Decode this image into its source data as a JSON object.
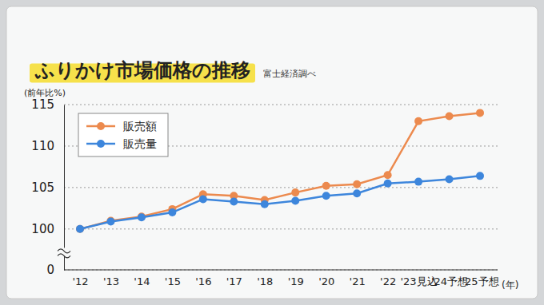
{
  "chart_data": {
    "type": "line",
    "title": "ふりかけ市場価格の推移",
    "subtitle": "富士経済調べ",
    "y_label": "(前年比%)",
    "x_label": "(年)",
    "categories": [
      "'12",
      "'13",
      "'14",
      "'15",
      "'16",
      "'17",
      "'18",
      "'19",
      "'20",
      "'21",
      "'22",
      "'23見込",
      "'24予想",
      "'25予想"
    ],
    "series": [
      {
        "name": "販売額",
        "color": "#ec8a4e",
        "marker": "circle",
        "values": [
          100,
          101.0,
          101.5,
          102.4,
          104.2,
          104.0,
          103.5,
          104.4,
          105.2,
          105.4,
          106.5,
          113.0,
          113.6,
          114.0
        ]
      },
      {
        "name": "販売量",
        "color": "#3d86dc",
        "marker": "circle",
        "values": [
          100,
          100.9,
          101.4,
          102.0,
          103.6,
          103.3,
          103.0,
          103.4,
          104.0,
          104.3,
          105.5,
          105.7,
          106.0,
          106.4
        ]
      }
    ],
    "ylim": [
      0,
      115
    ],
    "yticks": [
      0,
      100,
      105,
      110,
      115
    ],
    "grid": true,
    "legend": "top-left"
  }
}
